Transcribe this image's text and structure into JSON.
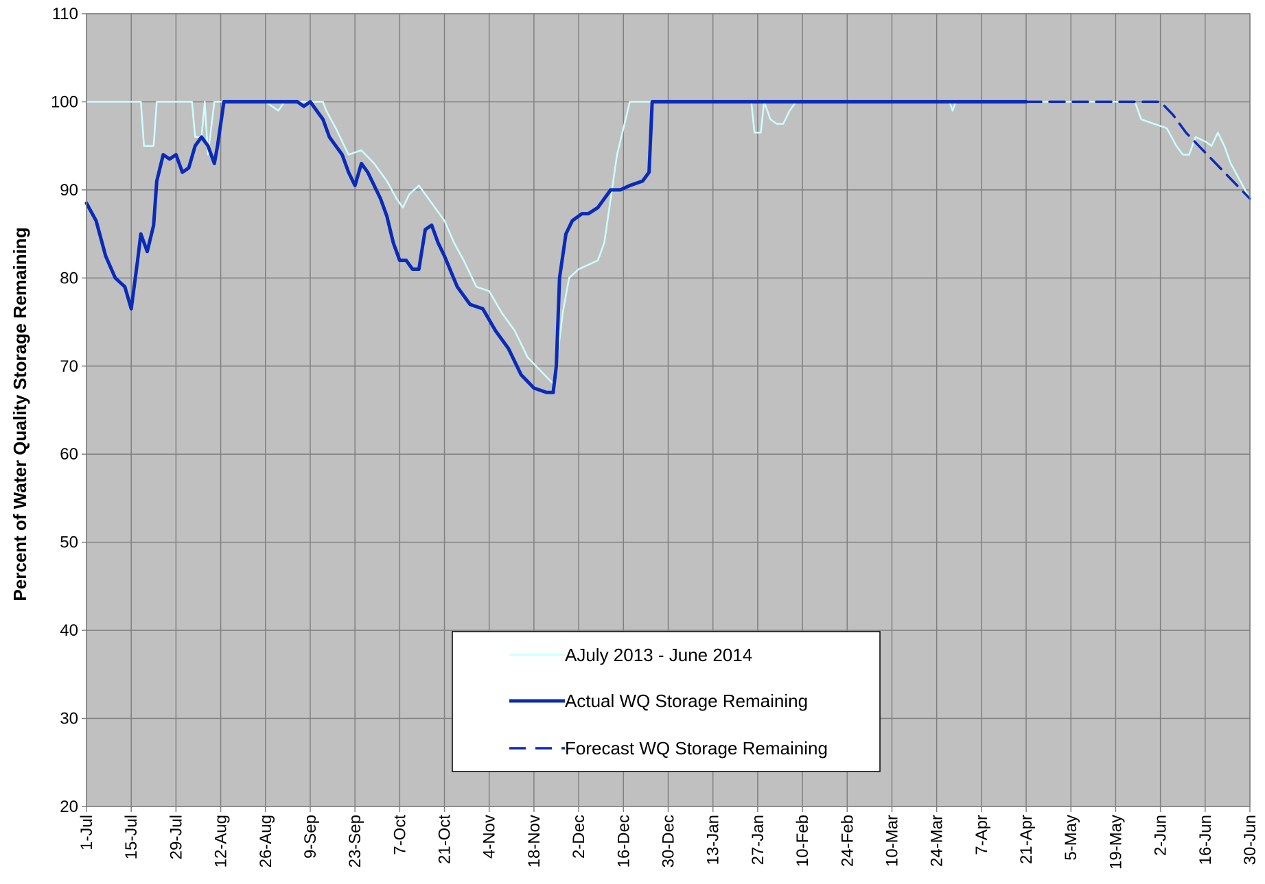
{
  "chart_data": {
    "type": "line",
    "title": "",
    "xlabel": "",
    "ylabel": "Percent of Water Quality Storage Remaining",
    "ylim": [
      20,
      110
    ],
    "yticks": [
      20,
      30,
      40,
      50,
      60,
      70,
      80,
      90,
      100,
      110
    ],
    "xlim": [
      0,
      364
    ],
    "x_unit": "day of water year starting 1-Jul",
    "xticks": [
      {
        "x": 0,
        "label": "1-Jul"
      },
      {
        "x": 14,
        "label": "15-Jul"
      },
      {
        "x": 28,
        "label": "29-Jul"
      },
      {
        "x": 42,
        "label": "12-Aug"
      },
      {
        "x": 56,
        "label": "26-Aug"
      },
      {
        "x": 70,
        "label": "9-Sep"
      },
      {
        "x": 84,
        "label": "23-Sep"
      },
      {
        "x": 98,
        "label": "7-Oct"
      },
      {
        "x": 112,
        "label": "21-Oct"
      },
      {
        "x": 126,
        "label": "4-Nov"
      },
      {
        "x": 140,
        "label": "18-Nov"
      },
      {
        "x": 154,
        "label": "2-Dec"
      },
      {
        "x": 168,
        "label": "16-Dec"
      },
      {
        "x": 182,
        "label": "30-Dec"
      },
      {
        "x": 196,
        "label": "13-Jan"
      },
      {
        "x": 210,
        "label": "27-Jan"
      },
      {
        "x": 224,
        "label": "10-Feb"
      },
      {
        "x": 238,
        "label": "24-Feb"
      },
      {
        "x": 252,
        "label": "10-Mar"
      },
      {
        "x": 266,
        "label": "24-Mar"
      },
      {
        "x": 280,
        "label": "7-Apr"
      },
      {
        "x": 294,
        "label": "21-Apr"
      },
      {
        "x": 308,
        "label": "5-May"
      },
      {
        "x": 322,
        "label": "19-May"
      },
      {
        "x": 336,
        "label": "2-Jun"
      },
      {
        "x": 350,
        "label": "16-Jun"
      },
      {
        "x": 364,
        "label": "30-Jun"
      }
    ],
    "grid": true,
    "legend_position": "bottom-center",
    "colors": {
      "plot_bg": "#c0c0c0",
      "grid": "#808080",
      "series_light": "#ccffff",
      "series_actual": "#0a2bb8",
      "series_forecast": "#0a2bb8"
    },
    "series": [
      {
        "name": "AJuly 2013 - June 2014",
        "style": "thin-light",
        "points": [
          [
            0,
            100
          ],
          [
            17,
            100
          ],
          [
            18,
            95
          ],
          [
            21,
            95
          ],
          [
            22,
            100
          ],
          [
            33,
            100
          ],
          [
            34,
            96
          ],
          [
            36,
            96
          ],
          [
            37,
            100
          ],
          [
            38,
            94
          ],
          [
            40,
            100
          ],
          [
            42,
            100
          ],
          [
            56,
            100
          ],
          [
            58,
            99.5
          ],
          [
            60,
            99
          ],
          [
            62,
            100
          ],
          [
            64,
            100
          ],
          [
            70,
            100
          ],
          [
            74,
            100
          ],
          [
            75,
            99
          ],
          [
            78,
            97
          ],
          [
            82,
            94
          ],
          [
            86,
            94.5
          ],
          [
            90,
            93
          ],
          [
            94,
            91
          ],
          [
            97,
            89
          ],
          [
            99,
            88
          ],
          [
            101,
            89.5
          ],
          [
            104,
            90.5
          ],
          [
            106,
            89.5
          ],
          [
            109,
            88
          ],
          [
            112,
            86.5
          ],
          [
            115,
            84
          ],
          [
            118,
            82
          ],
          [
            122,
            79
          ],
          [
            126,
            78.5
          ],
          [
            130,
            76
          ],
          [
            134,
            74
          ],
          [
            138,
            71
          ],
          [
            142,
            69.5
          ],
          [
            146,
            68
          ],
          [
            147,
            70
          ],
          [
            149,
            76
          ],
          [
            151,
            80
          ],
          [
            154,
            81
          ],
          [
            157,
            81.5
          ],
          [
            160,
            82
          ],
          [
            162,
            84
          ],
          [
            164,
            89
          ],
          [
            166,
            94
          ],
          [
            168,
            97
          ],
          [
            170,
            100
          ],
          [
            175,
            100
          ],
          [
            208,
            100
          ],
          [
            209,
            96.5
          ],
          [
            211,
            96.5
          ],
          [
            212,
            100
          ],
          [
            214,
            98
          ],
          [
            216,
            97.5
          ],
          [
            218,
            97.5
          ],
          [
            220,
            99
          ],
          [
            222,
            100
          ],
          [
            270,
            100
          ],
          [
            271,
            99
          ],
          [
            272,
            100
          ],
          [
            300,
            100
          ],
          [
            310,
            100
          ],
          [
            328,
            100
          ],
          [
            330,
            98
          ],
          [
            334,
            97.5
          ],
          [
            338,
            97
          ],
          [
            341,
            95
          ],
          [
            343,
            94
          ],
          [
            345,
            94
          ],
          [
            347,
            96
          ],
          [
            350,
            95.5
          ],
          [
            352,
            95
          ],
          [
            354,
            96.5
          ],
          [
            356,
            95
          ],
          [
            358,
            93
          ],
          [
            361,
            91
          ],
          [
            364,
            89
          ]
        ]
      },
      {
        "name": "Actual WQ Storage Remaining",
        "style": "thick",
        "points": [
          [
            0,
            88.5
          ],
          [
            3,
            86.5
          ],
          [
            6,
            82.5
          ],
          [
            9,
            80
          ],
          [
            12,
            79
          ],
          [
            14,
            76.5
          ],
          [
            16,
            82
          ],
          [
            17,
            85
          ],
          [
            19,
            83
          ],
          [
            21,
            86
          ],
          [
            22,
            91
          ],
          [
            24,
            94
          ],
          [
            26,
            93.5
          ],
          [
            28,
            94
          ],
          [
            30,
            92
          ],
          [
            32,
            92.5
          ],
          [
            34,
            95
          ],
          [
            36,
            96
          ],
          [
            38,
            95
          ],
          [
            40,
            93
          ],
          [
            41,
            95
          ],
          [
            43,
            100
          ],
          [
            55,
            100
          ],
          [
            66,
            100
          ],
          [
            68,
            99.5
          ],
          [
            70,
            100
          ],
          [
            74,
            98
          ],
          [
            76,
            96
          ],
          [
            78,
            95
          ],
          [
            80,
            94
          ],
          [
            82,
            92
          ],
          [
            84,
            90.5
          ],
          [
            86,
            93
          ],
          [
            88,
            92
          ],
          [
            92,
            89
          ],
          [
            94,
            87
          ],
          [
            96,
            84
          ],
          [
            98,
            82
          ],
          [
            100,
            82
          ],
          [
            102,
            81
          ],
          [
            104,
            81
          ],
          [
            106,
            85.5
          ],
          [
            108,
            86
          ],
          [
            110,
            84
          ],
          [
            112,
            82.5
          ],
          [
            116,
            79
          ],
          [
            120,
            77
          ],
          [
            124,
            76.5
          ],
          [
            128,
            74
          ],
          [
            132,
            72
          ],
          [
            136,
            69
          ],
          [
            140,
            67.5
          ],
          [
            144,
            67
          ],
          [
            146,
            67
          ],
          [
            147,
            70
          ],
          [
            148,
            80
          ],
          [
            150,
            85
          ],
          [
            152,
            86.5
          ],
          [
            155,
            87.3
          ],
          [
            157,
            87.3
          ],
          [
            160,
            88
          ],
          [
            162,
            89
          ],
          [
            164,
            90
          ],
          [
            167,
            90
          ],
          [
            170,
            90.5
          ],
          [
            174,
            91
          ],
          [
            176,
            92
          ],
          [
            177,
            100
          ],
          [
            182,
            100
          ],
          [
            294,
            100
          ]
        ]
      },
      {
        "name": "Forecast WQ Storage Remaining",
        "style": "dashed",
        "points": [
          [
            294,
            100
          ],
          [
            336,
            100
          ],
          [
            340,
            98.5
          ],
          [
            344,
            96.5
          ],
          [
            348,
            95
          ],
          [
            352,
            93.5
          ],
          [
            356,
            92
          ],
          [
            360,
            90.5
          ],
          [
            364,
            89
          ]
        ]
      }
    ]
  }
}
